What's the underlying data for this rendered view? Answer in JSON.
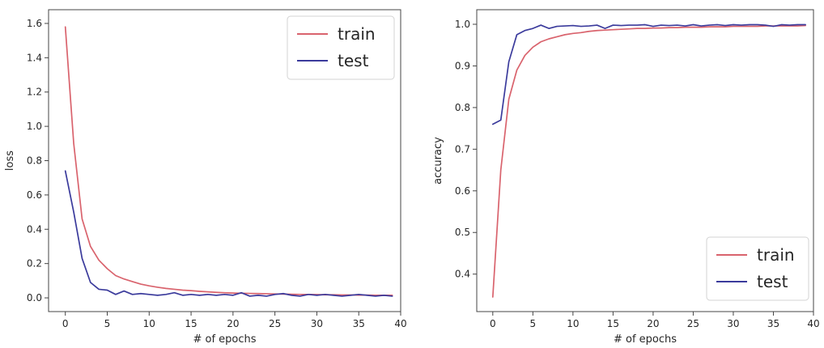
{
  "chart_data": [
    {
      "type": "line",
      "xlabel": "# of epochs",
      "ylabel": "loss",
      "xlim": [
        -2,
        40
      ],
      "ylim": [
        -0.08,
        1.68
      ],
      "xticks": [
        0,
        5,
        10,
        15,
        20,
        25,
        30,
        35,
        40
      ],
      "yticks": [
        0.0,
        0.2,
        0.4,
        0.6,
        0.8,
        1.0,
        1.2,
        1.4,
        1.6
      ],
      "ytick_labels": [
        "0.0",
        "0.2",
        "0.4",
        "0.6",
        "0.8",
        "1.0",
        "1.2",
        "1.4",
        "1.6"
      ],
      "grid": false,
      "legend_position": "top-right",
      "x": [
        0,
        1,
        2,
        3,
        4,
        5,
        6,
        7,
        8,
        9,
        10,
        11,
        12,
        13,
        14,
        15,
        16,
        17,
        18,
        19,
        20,
        21,
        22,
        23,
        24,
        25,
        26,
        27,
        28,
        29,
        30,
        31,
        32,
        33,
        34,
        35,
        36,
        37,
        38,
        39
      ],
      "series": [
        {
          "name": "train",
          "color": "#d9636d",
          "values": [
            1.58,
            0.9,
            0.46,
            0.3,
            0.22,
            0.17,
            0.13,
            0.11,
            0.095,
            0.08,
            0.07,
            0.062,
            0.055,
            0.05,
            0.045,
            0.042,
            0.038,
            0.035,
            0.032,
            0.03,
            0.028,
            0.027,
            0.026,
            0.025,
            0.024,
            0.023,
            0.022,
            0.021,
            0.02,
            0.02,
            0.019,
            0.018,
            0.018,
            0.017,
            0.017,
            0.016,
            0.016,
            0.015,
            0.015,
            0.015
          ]
        },
        {
          "name": "test",
          "color": "#3b3b9c",
          "values": [
            0.74,
            0.5,
            0.23,
            0.09,
            0.05,
            0.045,
            0.02,
            0.04,
            0.02,
            0.025,
            0.02,
            0.015,
            0.02,
            0.03,
            0.015,
            0.02,
            0.015,
            0.02,
            0.015,
            0.02,
            0.015,
            0.03,
            0.01,
            0.015,
            0.01,
            0.02,
            0.025,
            0.015,
            0.01,
            0.02,
            0.015,
            0.02,
            0.015,
            0.01,
            0.015,
            0.02,
            0.015,
            0.01,
            0.015,
            0.01
          ]
        }
      ]
    },
    {
      "type": "line",
      "xlabel": "# of epochs",
      "ylabel": "accuracy",
      "xlim": [
        -2,
        40
      ],
      "ylim": [
        0.31,
        1.035
      ],
      "xticks": [
        0,
        5,
        10,
        15,
        20,
        25,
        30,
        35,
        40
      ],
      "yticks": [
        0.4,
        0.5,
        0.6,
        0.7,
        0.8,
        0.9,
        1.0
      ],
      "ytick_labels": [
        "0.4",
        "0.5",
        "0.6",
        "0.7",
        "0.8",
        "0.9",
        "1.0"
      ],
      "grid": false,
      "legend_position": "bottom-right",
      "x": [
        0,
        1,
        2,
        3,
        4,
        5,
        6,
        7,
        8,
        9,
        10,
        11,
        12,
        13,
        14,
        15,
        16,
        17,
        18,
        19,
        20,
        21,
        22,
        23,
        24,
        25,
        26,
        27,
        28,
        29,
        30,
        31,
        32,
        33,
        34,
        35,
        36,
        37,
        38,
        39
      ],
      "series": [
        {
          "name": "train",
          "color": "#d9636d",
          "values": [
            0.345,
            0.65,
            0.82,
            0.89,
            0.925,
            0.945,
            0.958,
            0.965,
            0.97,
            0.975,
            0.978,
            0.98,
            0.983,
            0.985,
            0.986,
            0.987,
            0.988,
            0.989,
            0.99,
            0.99,
            0.991,
            0.991,
            0.992,
            0.992,
            0.993,
            0.993,
            0.993,
            0.994,
            0.994,
            0.994,
            0.995,
            0.995,
            0.995,
            0.995,
            0.996,
            0.996,
            0.996,
            0.996,
            0.996,
            0.997
          ]
        },
        {
          "name": "test",
          "color": "#3b3b9c",
          "values": [
            0.76,
            0.77,
            0.91,
            0.975,
            0.985,
            0.99,
            0.998,
            0.99,
            0.995,
            0.996,
            0.997,
            0.995,
            0.996,
            0.998,
            0.99,
            0.998,
            0.997,
            0.998,
            0.998,
            0.999,
            0.995,
            0.998,
            0.997,
            0.998,
            0.996,
            0.999,
            0.996,
            0.998,
            0.999,
            0.997,
            0.999,
            0.998,
            0.999,
            0.999,
            0.998,
            0.995,
            0.999,
            0.998,
            0.999,
            0.999
          ]
        }
      ]
    }
  ]
}
